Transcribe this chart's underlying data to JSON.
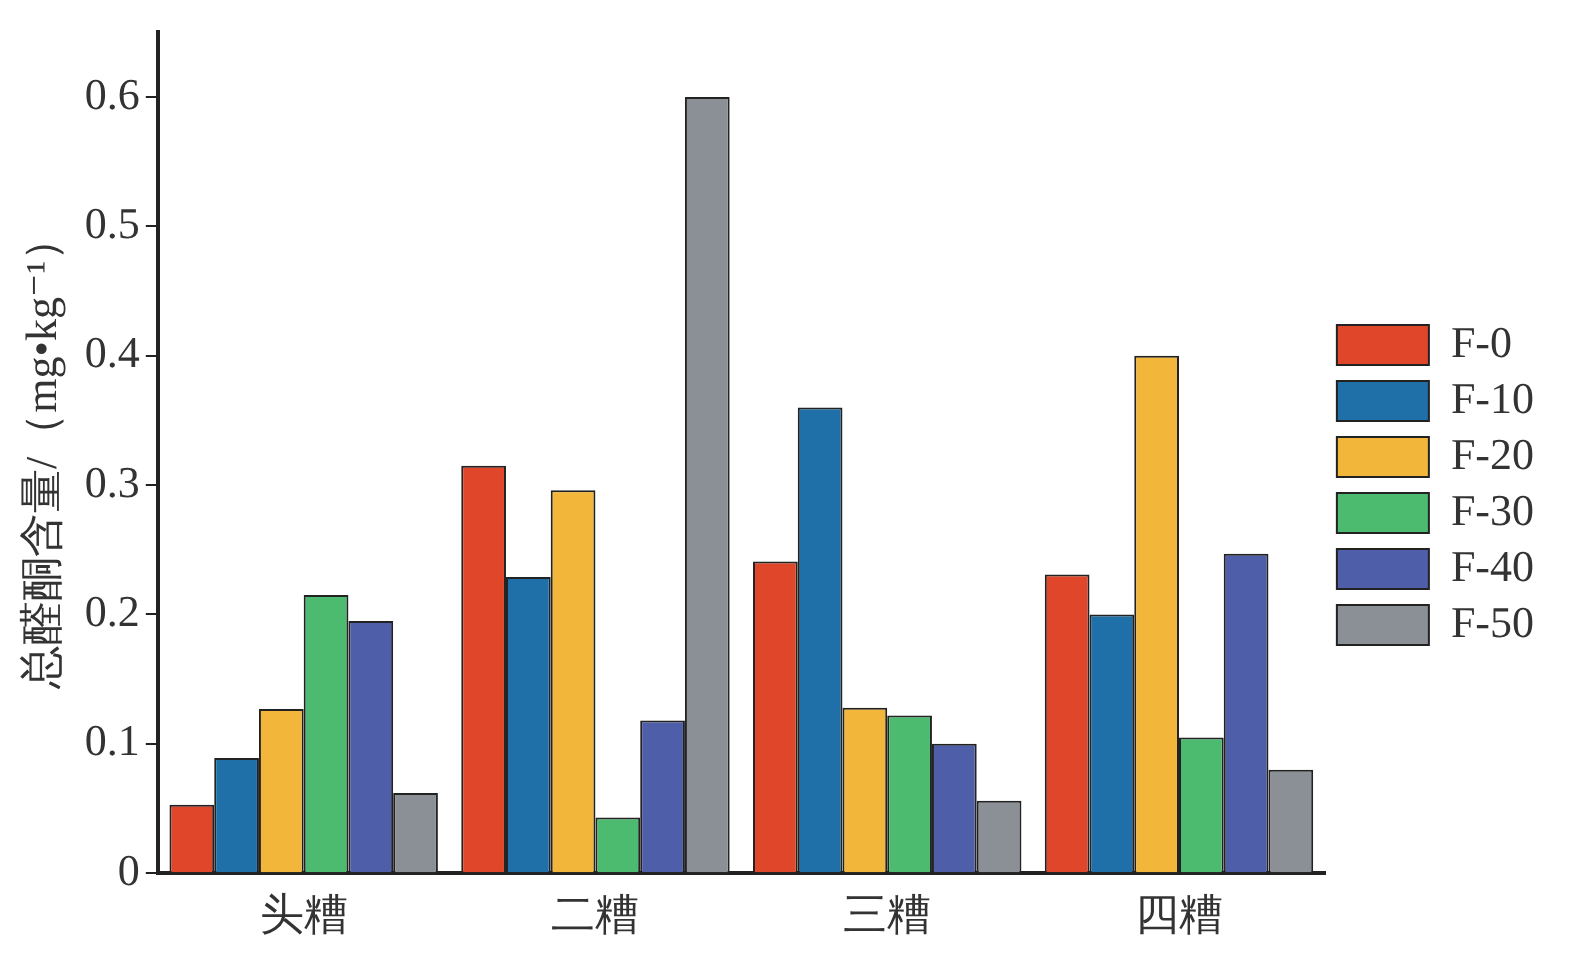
{
  "chart_data": {
    "type": "bar",
    "ylabel": "总醛酮含量/（mg•kg⁻¹）",
    "categories": [
      "头糟",
      "二糟",
      "三糟",
      "四糟"
    ],
    "series": [
      {
        "name": "F-0",
        "color": "#e0462a",
        "values": [
          0.053,
          0.315,
          0.241,
          0.231
        ]
      },
      {
        "name": "F-10",
        "color": "#1f6fa8",
        "values": [
          0.089,
          0.229,
          0.36,
          0.2
        ]
      },
      {
        "name": "F-20",
        "color": "#f2b73a",
        "values": [
          0.127,
          0.296,
          0.128,
          0.4
        ]
      },
      {
        "name": "F-30",
        "color": "#4dbb6f",
        "values": [
          0.215,
          0.043,
          0.122,
          0.105
        ]
      },
      {
        "name": "F-40",
        "color": "#4e5ea8",
        "values": [
          0.195,
          0.118,
          0.1,
          0.247
        ]
      },
      {
        "name": "F-50",
        "color": "#8a9096",
        "values": [
          0.062,
          0.6,
          0.056,
          0.08
        ]
      }
    ],
    "ylim": [
      0,
      0.65
    ],
    "yticks": [
      0,
      0.1,
      0.2,
      0.3,
      0.4,
      0.5,
      0.6
    ],
    "grid": false,
    "legend": "right"
  }
}
